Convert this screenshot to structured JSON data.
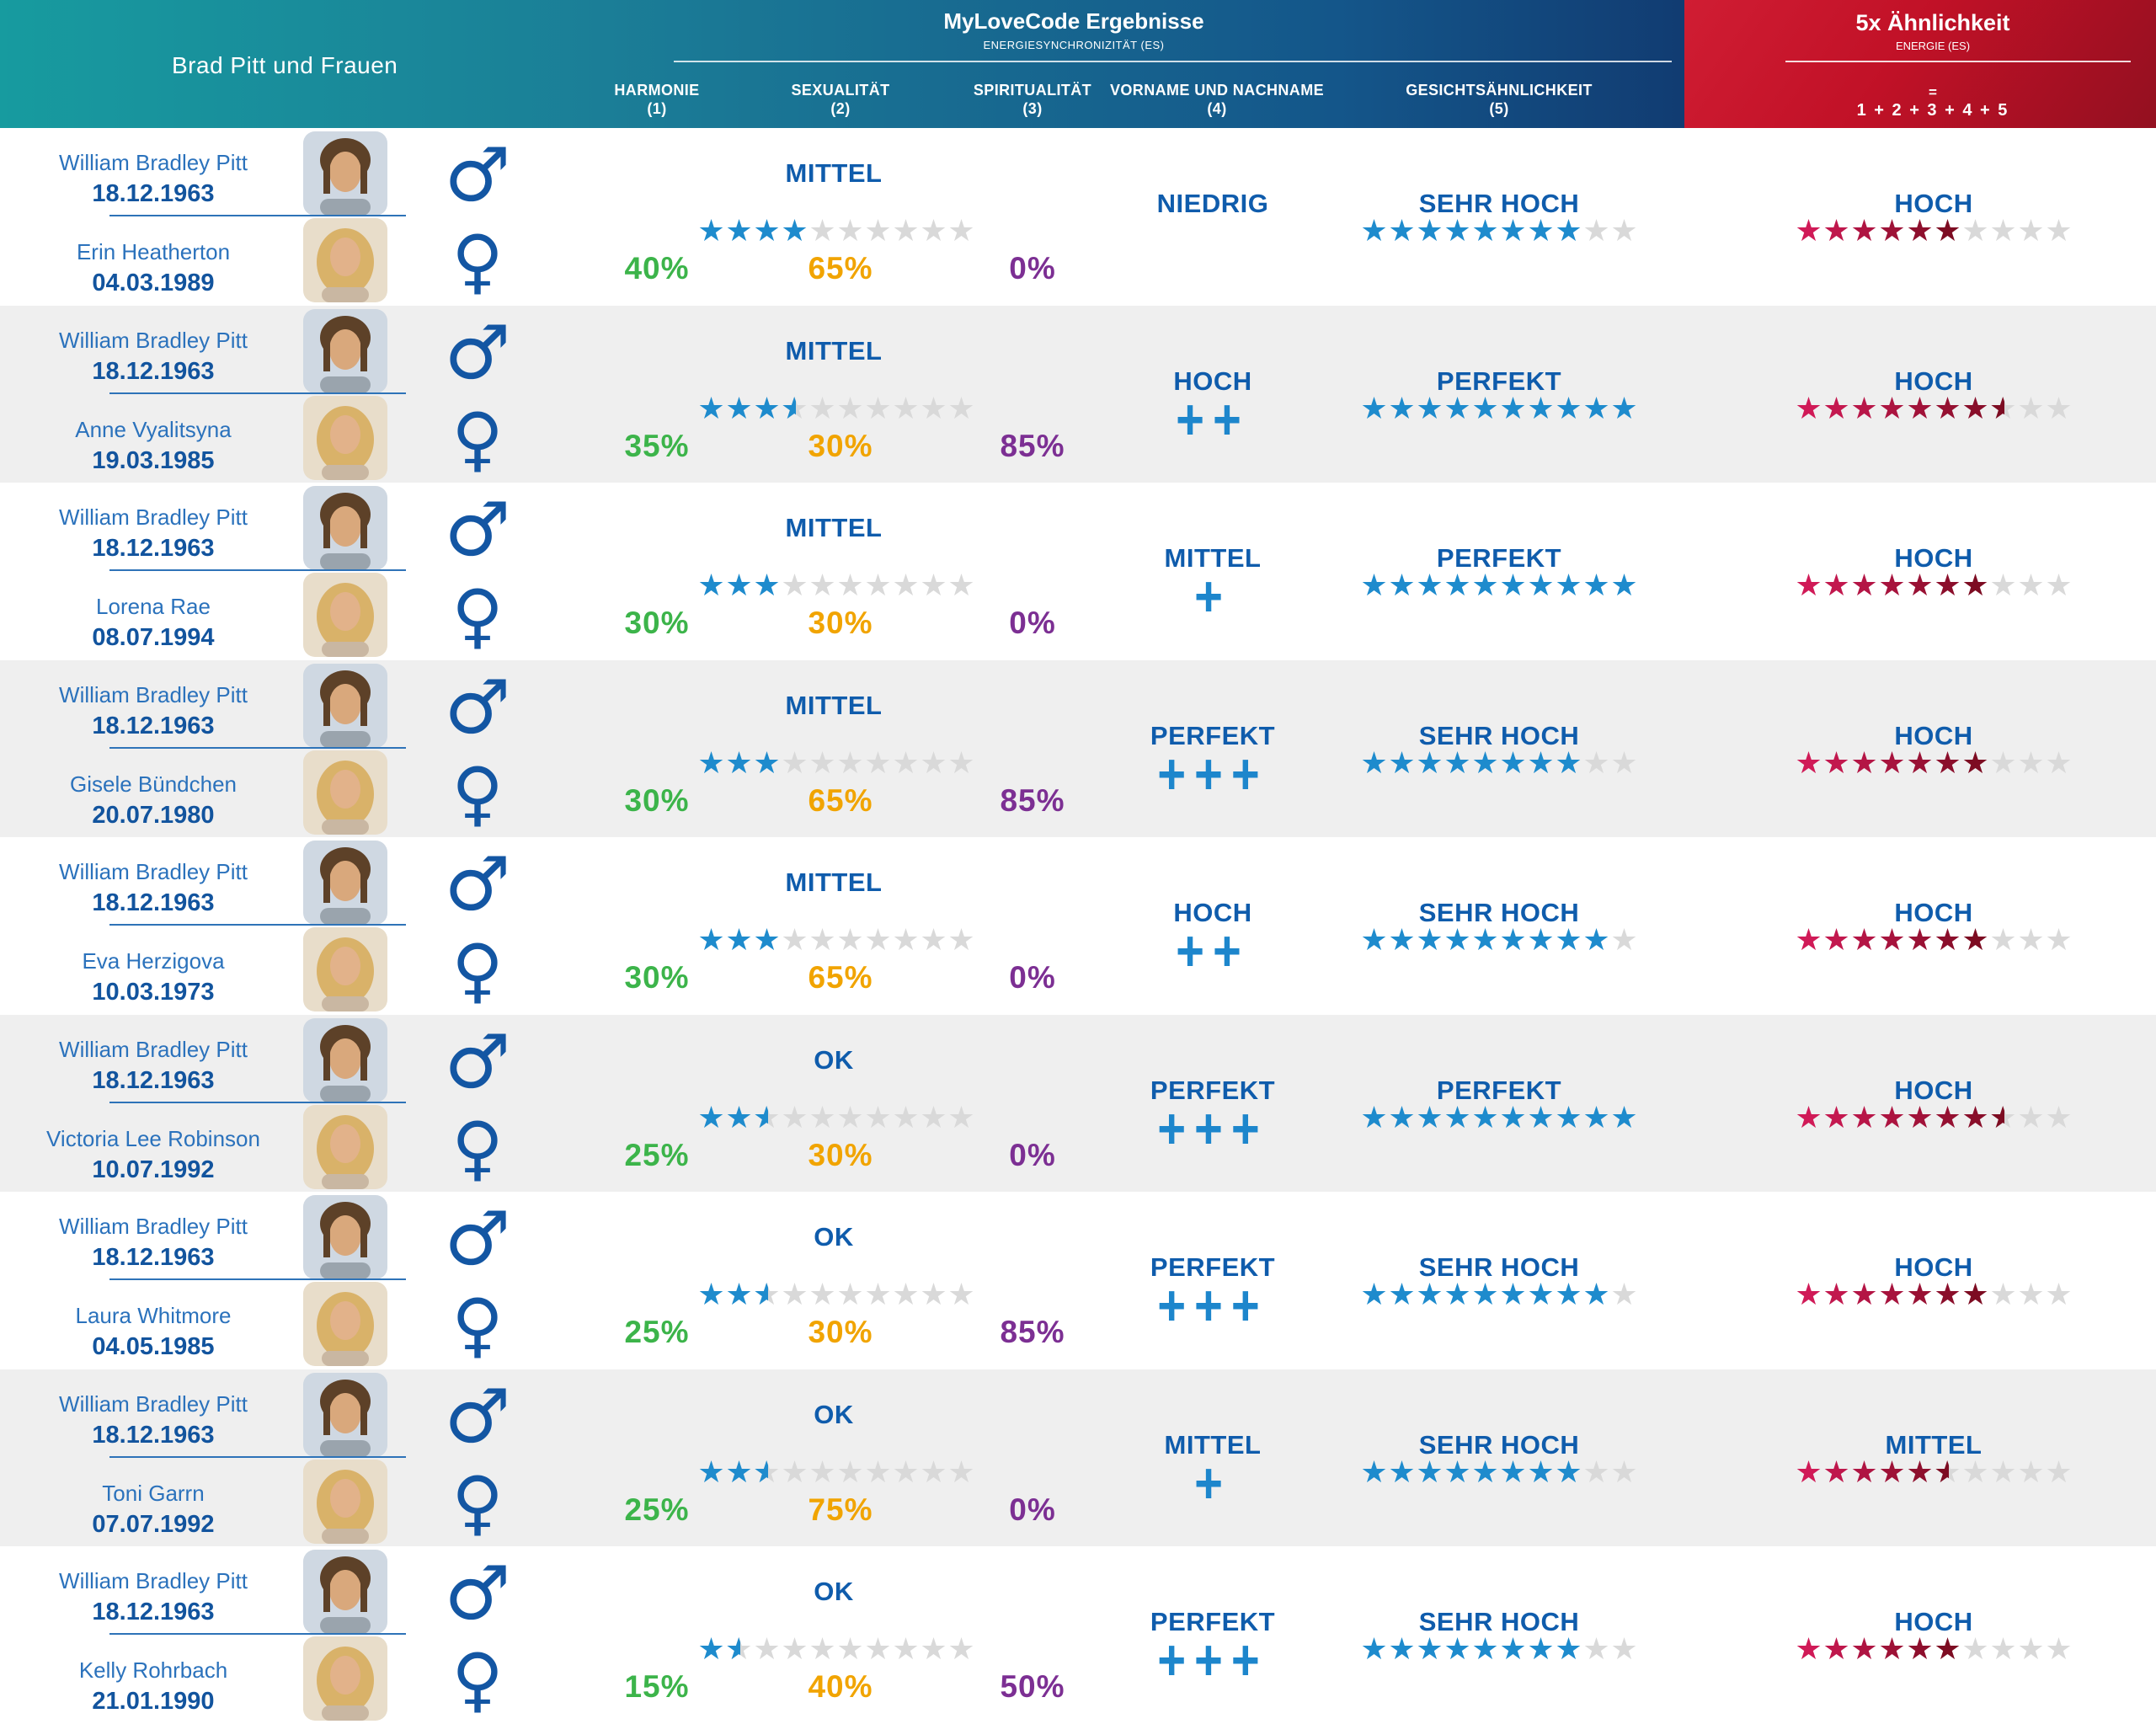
{
  "header": {
    "title": "Brad Pitt und Frauen",
    "results": {
      "title": "MyLoveCode Ergebnisse",
      "subtitle": "ENERGIESYNCHRONIZITÄT (ES)"
    },
    "columns": [
      {
        "label": "HARMONIE",
        "index": "(1)"
      },
      {
        "label": "SEXUALITÄT",
        "index": "(2)"
      },
      {
        "label": "SPIRITUALITÄT",
        "index": "(3)"
      },
      {
        "label": "VORNAME UND NACHNAME",
        "index": "(4)"
      },
      {
        "label": "GESICHTSÄHNLICHKEIT",
        "index": "(5)"
      }
    ],
    "similarity": {
      "title": "5x Ähnlichkeit",
      "subtitle": "ENERGIE (ES)",
      "equals": "=",
      "formula": "1 + 2 + 3 + 4 + 5"
    }
  },
  "icons": {
    "male": "♂",
    "female": "♀",
    "star": "★"
  },
  "colors": {
    "teal_start": "#179b9f",
    "navy_end": "#113c72",
    "red_header": "#c11127",
    "label_blue": "#0f5cac",
    "name_blue": "#2b72bc",
    "date_blue": "#12549e",
    "star_blue": "#1e8bcd",
    "star_red_start": "#d01a57",
    "star_red_end": "#7d0c22",
    "star_empty": "#d9d9d9",
    "green": "#3cb44a",
    "amber": "#f1a400",
    "purple": "#7c2f93",
    "plus_blue": "#1d86cc",
    "row_alt": "#efefef"
  },
  "rows": [
    {
      "male": {
        "name": "William Bradley Pitt",
        "dob": "18.12.1963"
      },
      "female": {
        "name": "Erin Heatherton",
        "dob": "04.03.1989"
      },
      "es": {
        "label": "MITTEL",
        "stars": 4,
        "harmonie": "40%",
        "sexualitaet": "65%",
        "spiritualitaet": "0%"
      },
      "vorname": {
        "label": "NIEDRIG",
        "plus": ""
      },
      "gesicht": {
        "label": "SEHR HOCH",
        "stars": 8
      },
      "aehnlichkeit": {
        "label": "HOCH",
        "stars": 6
      }
    },
    {
      "male": {
        "name": "William Bradley Pitt",
        "dob": "18.12.1963"
      },
      "female": {
        "name": "Anne Vyalitsyna",
        "dob": "19.03.1985"
      },
      "es": {
        "label": "MITTEL",
        "stars": 3.5,
        "harmonie": "35%",
        "sexualitaet": "30%",
        "spiritualitaet": "85%"
      },
      "vorname": {
        "label": "HOCH",
        "plus": "++"
      },
      "gesicht": {
        "label": "PERFEKT",
        "stars": 10
      },
      "aehnlichkeit": {
        "label": "HOCH",
        "stars": 7.5
      }
    },
    {
      "male": {
        "name": "William Bradley Pitt",
        "dob": "18.12.1963"
      },
      "female": {
        "name": "Lorena Rae",
        "dob": "08.07.1994"
      },
      "es": {
        "label": "MITTEL",
        "stars": 3,
        "harmonie": "30%",
        "sexualitaet": "30%",
        "spiritualitaet": "0%"
      },
      "vorname": {
        "label": "MITTEL",
        "plus": "+"
      },
      "gesicht": {
        "label": "PERFEKT",
        "stars": 10
      },
      "aehnlichkeit": {
        "label": "HOCH",
        "stars": 7
      }
    },
    {
      "male": {
        "name": "William Bradley Pitt",
        "dob": "18.12.1963"
      },
      "female": {
        "name": "Gisele Bündchen",
        "dob": "20.07.1980"
      },
      "es": {
        "label": "MITTEL",
        "stars": 3,
        "harmonie": "30%",
        "sexualitaet": "65%",
        "spiritualitaet": "85%"
      },
      "vorname": {
        "label": "PERFEKT",
        "plus": "+++"
      },
      "gesicht": {
        "label": "SEHR HOCH",
        "stars": 8
      },
      "aehnlichkeit": {
        "label": "HOCH",
        "stars": 7
      }
    },
    {
      "male": {
        "name": "William Bradley Pitt",
        "dob": "18.12.1963"
      },
      "female": {
        "name": "Eva Herzigova",
        "dob": "10.03.1973"
      },
      "es": {
        "label": "MITTEL",
        "stars": 3,
        "harmonie": "30%",
        "sexualitaet": "65%",
        "spiritualitaet": "0%"
      },
      "vorname": {
        "label": "HOCH",
        "plus": "++"
      },
      "gesicht": {
        "label": "SEHR HOCH",
        "stars": 9
      },
      "aehnlichkeit": {
        "label": "HOCH",
        "stars": 7
      }
    },
    {
      "male": {
        "name": "William Bradley Pitt",
        "dob": "18.12.1963"
      },
      "female": {
        "name": "Victoria Lee Robinson",
        "dob": "10.07.1992"
      },
      "es": {
        "label": "OK",
        "stars": 2.5,
        "harmonie": "25%",
        "sexualitaet": "30%",
        "spiritualitaet": "0%"
      },
      "vorname": {
        "label": "PERFEKT",
        "plus": "+++"
      },
      "gesicht": {
        "label": "PERFEKT",
        "stars": 10
      },
      "aehnlichkeit": {
        "label": "HOCH",
        "stars": 7.5
      }
    },
    {
      "male": {
        "name": "William Bradley Pitt",
        "dob": "18.12.1963"
      },
      "female": {
        "name": "Laura Whitmore",
        "dob": "04.05.1985"
      },
      "es": {
        "label": "OK",
        "stars": 2.5,
        "harmonie": "25%",
        "sexualitaet": "30%",
        "spiritualitaet": "85%"
      },
      "vorname": {
        "label": "PERFEKT",
        "plus": "+++"
      },
      "gesicht": {
        "label": "SEHR HOCH",
        "stars": 9
      },
      "aehnlichkeit": {
        "label": "HOCH",
        "stars": 7
      }
    },
    {
      "male": {
        "name": "William Bradley Pitt",
        "dob": "18.12.1963"
      },
      "female": {
        "name": "Toni Garrn",
        "dob": "07.07.1992"
      },
      "es": {
        "label": "OK",
        "stars": 2.5,
        "harmonie": "25%",
        "sexualitaet": "75%",
        "spiritualitaet": "0%"
      },
      "vorname": {
        "label": "MITTEL",
        "plus": "+"
      },
      "gesicht": {
        "label": "SEHR HOCH",
        "stars": 8
      },
      "aehnlichkeit": {
        "label": "MITTEL",
        "stars": 5.5
      }
    },
    {
      "male": {
        "name": "William Bradley Pitt",
        "dob": "18.12.1963"
      },
      "female": {
        "name": "Kelly Rohrbach",
        "dob": "21.01.1990"
      },
      "es": {
        "label": "OK",
        "stars": 1.5,
        "harmonie": "15%",
        "sexualitaet": "40%",
        "spiritualitaet": "50%"
      },
      "vorname": {
        "label": "PERFEKT",
        "plus": "+++"
      },
      "gesicht": {
        "label": "SEHR HOCH",
        "stars": 8
      },
      "aehnlichkeit": {
        "label": "HOCH",
        "stars": 6
      }
    }
  ]
}
